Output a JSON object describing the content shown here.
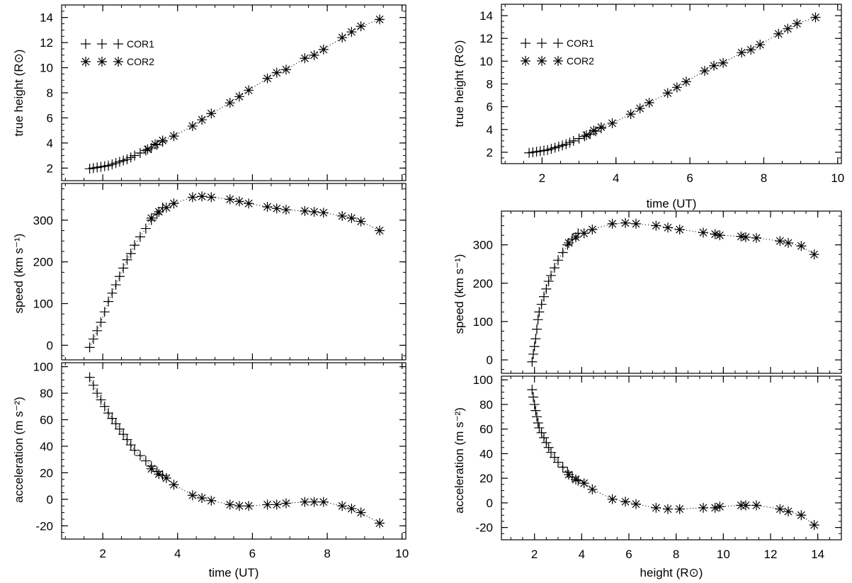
{
  "figure": {
    "legend": {
      "cor1_label": "COR1",
      "cor2_label": "COR2"
    },
    "axis_labels": {
      "left_time": "time (UT)",
      "right_time": "time (UT)",
      "height": "height (R⊙)",
      "true_height": "true height (R⊙)",
      "speed": "speed (km s⁻¹)",
      "acceleration": "acceleration (m s⁻²)"
    }
  },
  "chart_data": [
    {
      "id": "left-top",
      "type": "scatter",
      "title": "",
      "xlabel": "time (UT)",
      "ylabel": "true height (R⊙)",
      "xlim": [
        0.9,
        10.1
      ],
      "ylim": [
        1.0,
        15.0
      ],
      "xticks": [
        2,
        4,
        6,
        8,
        10
      ],
      "yticks": [
        2,
        4,
        6,
        8,
        10,
        12,
        14
      ],
      "show_x_tick_labels": false,
      "legend": "top-left",
      "series": [
        {
          "name": "COR1",
          "marker": "plus",
          "x": [
            1.65,
            1.75,
            1.85,
            1.95,
            2.05,
            2.15,
            2.25,
            2.35,
            2.45,
            2.55,
            2.65,
            2.75,
            2.85,
            3.0,
            3.15,
            3.3,
            3.45,
            3.6
          ],
          "y": [
            1.95,
            2.0,
            2.05,
            2.1,
            2.15,
            2.2,
            2.3,
            2.4,
            2.5,
            2.6,
            2.7,
            2.85,
            3.0,
            3.2,
            3.4,
            3.6,
            3.85,
            4.1
          ]
        },
        {
          "name": "COR2",
          "marker": "asterisk",
          "x": [
            3.2,
            3.4,
            3.6,
            3.9,
            4.4,
            4.65,
            4.9,
            5.4,
            5.65,
            5.9,
            6.4,
            6.65,
            6.9,
            7.4,
            7.65,
            7.9,
            8.4,
            8.65,
            8.9,
            9.4
          ],
          "y": [
            3.5,
            3.9,
            4.2,
            4.55,
            5.35,
            5.85,
            6.35,
            7.2,
            7.7,
            8.2,
            9.15,
            9.6,
            9.85,
            10.75,
            11.0,
            11.45,
            12.4,
            12.85,
            13.3,
            13.85
          ]
        }
      ]
    },
    {
      "id": "left-middle",
      "type": "scatter",
      "title": "",
      "xlabel": "time (UT)",
      "ylabel": "speed (km s⁻¹)",
      "xlim": [
        0.9,
        10.1
      ],
      "ylim": [
        -35,
        388
      ],
      "xticks": [
        2,
        4,
        6,
        8,
        10
      ],
      "yticks": [
        0,
        100,
        200,
        300
      ],
      "show_x_tick_labels": false,
      "series": [
        {
          "name": "COR1",
          "marker": "plus",
          "x": [
            1.65,
            1.75,
            1.85,
            1.95,
            2.05,
            2.15,
            2.25,
            2.35,
            2.45,
            2.55,
            2.65,
            2.75,
            2.85,
            3.0,
            3.15,
            3.3,
            3.45,
            3.6
          ],
          "y": [
            -5,
            15,
            35,
            55,
            80,
            105,
            125,
            145,
            165,
            185,
            205,
            220,
            240,
            260,
            280,
            300,
            315,
            330
          ]
        },
        {
          "name": "COR2",
          "marker": "asterisk",
          "x": [
            3.3,
            3.5,
            3.7,
            3.9,
            4.4,
            4.65,
            4.9,
            5.4,
            5.65,
            5.9,
            6.4,
            6.65,
            6.9,
            7.4,
            7.65,
            7.9,
            8.4,
            8.65,
            8.9,
            9.4
          ],
          "y": [
            305,
            320,
            330,
            340,
            355,
            357,
            355,
            350,
            345,
            340,
            332,
            328,
            325,
            322,
            320,
            318,
            310,
            305,
            297,
            275
          ]
        }
      ]
    },
    {
      "id": "left-bottom",
      "type": "scatter",
      "title": "",
      "xlabel": "time (UT)",
      "ylabel": "acceleration (m s⁻²)",
      "xlim": [
        0.9,
        10.1
      ],
      "ylim": [
        -30,
        103
      ],
      "xticks": [
        2,
        4,
        6,
        8,
        10
      ],
      "yticks": [
        -20,
        0,
        20,
        40,
        60,
        80,
        100
      ],
      "show_x_tick_labels": true,
      "series": [
        {
          "name": "COR1",
          "marker": "plus",
          "x": [
            1.65,
            1.75,
            1.85,
            1.95,
            2.05,
            2.15,
            2.25,
            2.35,
            2.45,
            2.55,
            2.65,
            2.75,
            2.85,
            3.0,
            3.15,
            3.3,
            3.45,
            3.6
          ],
          "y": [
            92,
            86,
            80,
            75,
            70,
            65,
            61,
            57,
            53,
            49,
            45,
            41,
            37,
            33,
            29,
            25,
            21,
            18
          ]
        },
        {
          "name": "COR2",
          "marker": "asterisk",
          "x": [
            3.3,
            3.5,
            3.7,
            3.9,
            4.4,
            4.65,
            4.9,
            5.4,
            5.65,
            5.9,
            6.4,
            6.65,
            6.9,
            7.4,
            7.65,
            7.9,
            8.4,
            8.65,
            8.9,
            9.4
          ],
          "y": [
            23,
            19,
            16,
            11,
            3,
            1,
            -1,
            -4,
            -5,
            -5,
            -4,
            -4,
            -3,
            -2,
            -2,
            -2,
            -5,
            -7,
            -10,
            -18
          ]
        }
      ]
    },
    {
      "id": "right-top",
      "type": "scatter",
      "title": "",
      "xlabel": "time (UT)",
      "ylabel": "true height (R⊙)",
      "xlim": [
        0.9,
        10.1
      ],
      "ylim": [
        1.0,
        15.0
      ],
      "xticks": [
        2,
        4,
        6,
        8,
        10
      ],
      "yticks": [
        2,
        4,
        6,
        8,
        10,
        12,
        14
      ],
      "show_x_tick_labels": true,
      "legend": "top-left",
      "series": [
        {
          "name": "COR1",
          "marker": "plus",
          "x": [
            1.65,
            1.75,
            1.85,
            1.95,
            2.05,
            2.15,
            2.25,
            2.35,
            2.45,
            2.55,
            2.65,
            2.75,
            2.85,
            3.0,
            3.15,
            3.3,
            3.45,
            3.6
          ],
          "y": [
            1.95,
            2.0,
            2.05,
            2.1,
            2.15,
            2.2,
            2.3,
            2.4,
            2.5,
            2.6,
            2.7,
            2.85,
            3.0,
            3.2,
            3.4,
            3.6,
            3.85,
            4.1
          ]
        },
        {
          "name": "COR2",
          "marker": "asterisk",
          "x": [
            3.2,
            3.4,
            3.6,
            3.9,
            4.4,
            4.65,
            4.9,
            5.4,
            5.65,
            5.9,
            6.4,
            6.65,
            6.9,
            7.4,
            7.65,
            7.9,
            8.4,
            8.65,
            8.9,
            9.4
          ],
          "y": [
            3.5,
            3.9,
            4.2,
            4.55,
            5.35,
            5.85,
            6.35,
            7.2,
            7.7,
            8.2,
            9.15,
            9.6,
            9.85,
            10.75,
            11.0,
            11.45,
            12.4,
            12.85,
            13.3,
            13.85
          ]
        }
      ]
    },
    {
      "id": "right-middle",
      "type": "scatter",
      "title": "",
      "xlabel": "height (R⊙)",
      "ylabel": "speed (km s⁻¹)",
      "xlim": [
        0.6,
        15.0
      ],
      "ylim": [
        -35,
        388
      ],
      "xticks": [
        2,
        4,
        6,
        8,
        10,
        12,
        14
      ],
      "yticks": [
        0,
        100,
        200,
        300
      ],
      "show_x_tick_labels": false,
      "series": [
        {
          "name": "COR1",
          "marker": "plus",
          "x": [
            1.9,
            1.95,
            2.0,
            2.05,
            2.1,
            2.15,
            2.2,
            2.3,
            2.4,
            2.5,
            2.6,
            2.7,
            2.85,
            3.0,
            3.2,
            3.4,
            3.6,
            3.85
          ],
          "y": [
            -5,
            15,
            35,
            55,
            80,
            105,
            125,
            145,
            165,
            185,
            205,
            220,
            240,
            260,
            280,
            300,
            315,
            330
          ]
        },
        {
          "name": "COR2",
          "marker": "asterisk",
          "x": [
            3.45,
            3.75,
            4.1,
            4.45,
            5.3,
            5.85,
            6.3,
            7.15,
            7.65,
            8.15,
            9.15,
            9.65,
            9.85,
            10.75,
            10.95,
            11.4,
            12.4,
            12.75,
            13.3,
            13.85
          ],
          "y": [
            305,
            320,
            330,
            340,
            355,
            357,
            355,
            350,
            345,
            340,
            332,
            328,
            325,
            322,
            320,
            318,
            310,
            305,
            297,
            275
          ]
        }
      ]
    },
    {
      "id": "right-bottom",
      "type": "scatter",
      "title": "",
      "xlabel": "height (R⊙)",
      "ylabel": "acceleration (m s⁻²)",
      "xlim": [
        0.6,
        15.0
      ],
      "ylim": [
        -30,
        103
      ],
      "xticks": [
        2,
        4,
        6,
        8,
        10,
        12,
        14
      ],
      "yticks": [
        -20,
        0,
        20,
        40,
        60,
        80,
        100
      ],
      "show_x_tick_labels": true,
      "series": [
        {
          "name": "COR1",
          "marker": "plus",
          "x": [
            1.9,
            1.95,
            2.0,
            2.05,
            2.1,
            2.15,
            2.2,
            2.3,
            2.4,
            2.5,
            2.6,
            2.7,
            2.85,
            3.0,
            3.2,
            3.4,
            3.6,
            3.85
          ],
          "y": [
            92,
            86,
            80,
            75,
            70,
            65,
            61,
            57,
            53,
            49,
            45,
            41,
            37,
            33,
            29,
            25,
            21,
            18
          ]
        },
        {
          "name": "COR2",
          "marker": "asterisk",
          "x": [
            3.45,
            3.75,
            4.1,
            4.45,
            5.3,
            5.85,
            6.3,
            7.15,
            7.65,
            8.15,
            9.15,
            9.65,
            9.85,
            10.75,
            10.95,
            11.4,
            12.4,
            12.75,
            13.3,
            13.85
          ],
          "y": [
            23,
            19,
            16,
            11,
            3,
            1,
            -1,
            -4,
            -5,
            -5,
            -4,
            -4,
            -3,
            -2,
            -2,
            -2,
            -5,
            -7,
            -10,
            -18
          ]
        }
      ]
    }
  ]
}
